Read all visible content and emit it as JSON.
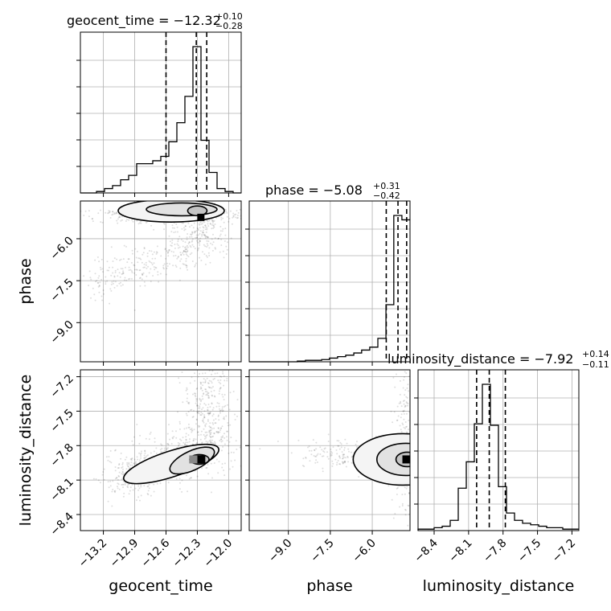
{
  "chart_data": {
    "type": "corner",
    "parameters": [
      "geocent_time",
      "phase",
      "luminosity_distance"
    ],
    "titles": [
      {
        "param": "geocent_time",
        "text": "geocent_time = −12.32",
        "sup": "+0.10",
        "sub": "−0.28"
      },
      {
        "param": "phase",
        "text": "phase = −5.08",
        "sup": "+0.31",
        "sub": "−0.42"
      },
      {
        "param": "luminosity_distance",
        "text": "luminosity_distance = −7.92",
        "sup": "+0.14",
        "sub": "−0.11"
      }
    ],
    "axis_labels": {
      "geocent_time": "geocent_time",
      "phase": "phase",
      "luminosity_distance": "luminosity_distance"
    },
    "ranges": {
      "geocent_time": [
        -13.42,
        -11.88
      ],
      "phase": [
        -10.4,
        -4.65
      ],
      "luminosity_distance": [
        -8.54,
        -7.14
      ]
    },
    "ticks": {
      "geocent_time": [
        "−13.2",
        "−12.9",
        "−12.6",
        "−12.3",
        "−12.0"
      ],
      "phase": [
        "−9.0",
        "−7.5",
        "−6.0"
      ],
      "luminosity_distance": [
        "−8.4",
        "−8.1",
        "−7.8",
        "−7.5",
        "−7.2"
      ]
    },
    "tick_values": {
      "geocent_time": [
        -13.2,
        -12.9,
        -12.6,
        -12.3,
        -12.0
      ],
      "phase": [
        -9.0,
        -7.5,
        -6.0
      ],
      "luminosity_distance": [
        -8.4,
        -8.1,
        -7.8,
        -7.5,
        -7.2
      ]
    },
    "quantiles": {
      "geocent_time": [
        -12.6,
        -12.31,
        -12.21
      ],
      "phase": [
        -5.5,
        -5.08,
        -4.77
      ],
      "luminosity_distance": [
        -8.03,
        -7.92,
        -7.78
      ]
    },
    "histograms": {
      "geocent_time": {
        "edges": [
          -13.42,
          -13.343,
          -13.266,
          -13.189,
          -13.112,
          -13.035,
          -12.958,
          -12.881,
          -12.804,
          -12.727,
          -12.65,
          -12.573,
          -12.496,
          -12.419,
          -12.342,
          -12.265,
          -12.188,
          -12.111,
          -12.034,
          -11.957,
          -11.88
        ],
        "counts": [
          0,
          0,
          0.01,
          0.03,
          0.05,
          0.09,
          0.12,
          0.2,
          0.2,
          0.22,
          0.25,
          0.35,
          0.48,
          0.66,
          1.0,
          0.36,
          0.14,
          0.03,
          0.01,
          0
        ]
      },
      "phase": {
        "edges": [
          -10.4,
          -10.11,
          -9.83,
          -9.54,
          -9.25,
          -8.96,
          -8.68,
          -8.39,
          -8.1,
          -7.81,
          -7.53,
          -7.24,
          -6.95,
          -6.66,
          -6.38,
          -6.09,
          -5.8,
          -5.51,
          -5.23,
          -4.94,
          -4.65
        ],
        "counts": [
          0,
          0,
          0,
          0,
          0,
          0,
          0.005,
          0.01,
          0.01,
          0.015,
          0.025,
          0.035,
          0.045,
          0.06,
          0.08,
          0.1,
          0.16,
          0.39,
          1.0,
          0.97
        ]
      },
      "luminosity_distance": {
        "edges": [
          -8.54,
          -8.47,
          -8.4,
          -8.33,
          -8.26,
          -8.19,
          -8.12,
          -8.05,
          -7.98,
          -7.91,
          -7.84,
          -7.77,
          -7.7,
          -7.63,
          -7.56,
          -7.49,
          -7.42,
          -7.35,
          -7.28,
          -7.21,
          -7.14
        ],
        "counts": [
          0.01,
          0.01,
          0.02,
          0.03,
          0.07,
          0.29,
          0.47,
          0.73,
          1.0,
          0.72,
          0.3,
          0.12,
          0.07,
          0.05,
          0.04,
          0.03,
          0.02,
          0.02,
          0.01,
          0.01
        ]
      }
    },
    "modes_2d": [
      {
        "x": "geocent_time",
        "y": "phase",
        "center": [
          -12.27,
          -5.25
        ]
      },
      {
        "x": "geocent_time",
        "y": "luminosity_distance",
        "center": [
          -12.27,
          -7.92
        ]
      },
      {
        "x": "phase",
        "y": "luminosity_distance",
        "center": [
          -4.75,
          -7.92
        ]
      }
    ],
    "grid": true,
    "colors": {
      "line": "#000000",
      "grid": "#b0b0b0",
      "scatter": "#000000"
    }
  }
}
